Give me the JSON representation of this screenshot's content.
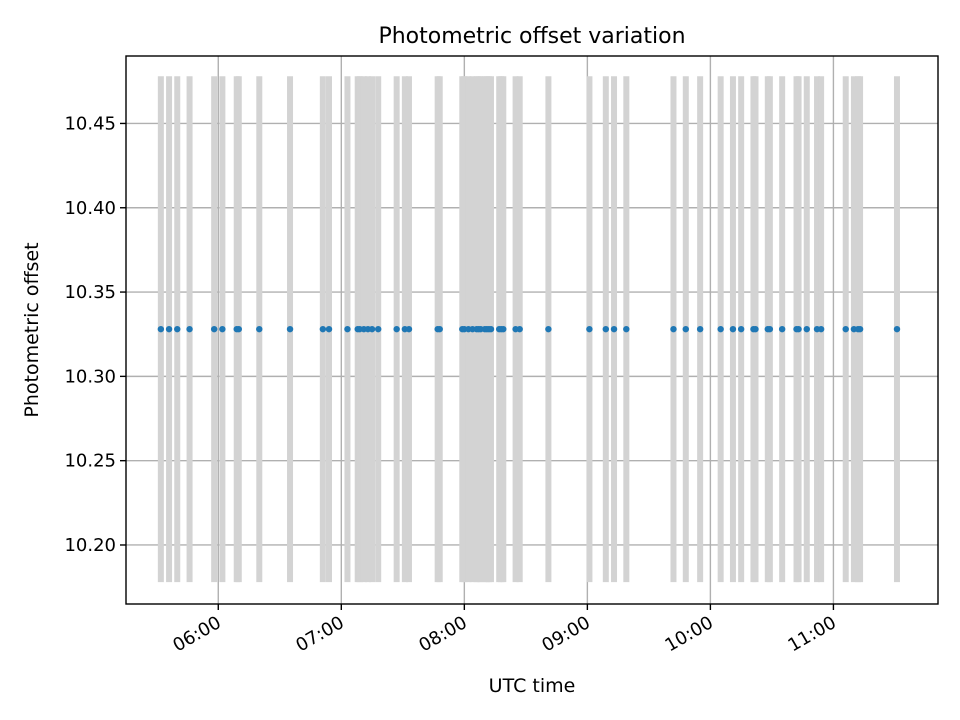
{
  "chart_data": {
    "type": "scatter",
    "title": "Photometric offset variation",
    "xlabel": "UTC time",
    "ylabel": "Photometric offset",
    "xlim": [
      "05:15",
      "11:51"
    ],
    "ylim": [
      10.165,
      10.49
    ],
    "xticks": [
      "06:00",
      "07:00",
      "08:00",
      "09:00",
      "10:00",
      "11:00"
    ],
    "yticks": [
      "10.20",
      "10.25",
      "10.30",
      "10.35",
      "10.40",
      "10.45"
    ],
    "grid": true,
    "marker_color": "#1f77b4",
    "errorbar_color": "#d3d3d3",
    "y": 10.328,
    "yerr": 0.15,
    "x": [
      "05:32",
      "05:36",
      "05:40",
      "05:46",
      "05:58",
      "06:02",
      "06:09",
      "06:10",
      "06:20",
      "06:35",
      "06:51",
      "06:54",
      "07:03",
      "07:08",
      "07:09",
      "07:11",
      "07:13",
      "07:15",
      "07:18",
      "07:27",
      "07:31",
      "07:33",
      "07:47",
      "07:48",
      "07:59",
      "08:00",
      "08:02",
      "08:04",
      "08:06",
      "08:07",
      "08:08",
      "08:10",
      "08:11",
      "08:12",
      "08:13",
      "08:17",
      "08:18",
      "08:19",
      "08:25",
      "08:27",
      "08:41",
      "09:01",
      "09:09",
      "09:13",
      "09:19",
      "09:42",
      "09:48",
      "09:55",
      "10:05",
      "10:11",
      "10:15",
      "10:21",
      "10:22",
      "10:28",
      "10:29",
      "10:35",
      "10:42",
      "10:43",
      "10:47",
      "10:52",
      "10:54",
      "11:06",
      "11:10",
      "11:12",
      "11:13",
      "11:31"
    ]
  }
}
